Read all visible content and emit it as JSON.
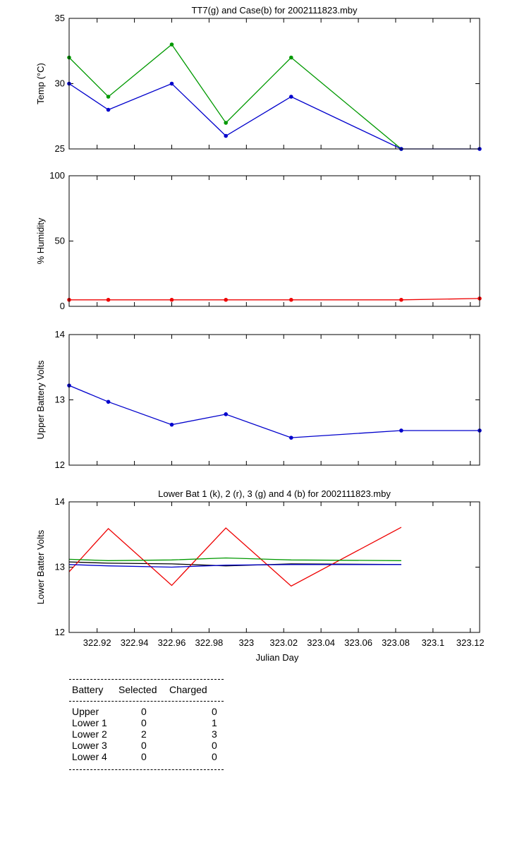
{
  "chart_data": [
    {
      "type": "line",
      "title": "TT7(g) and Case(b) for 2002111823.mby",
      "xlabel": "",
      "ylabel": "Temp  (°C)",
      "xlim": [
        322.905,
        323.125
      ],
      "ylim": [
        25,
        35
      ],
      "yticks": [
        25,
        30,
        35
      ],
      "grid": false,
      "series": [
        {
          "color": "#009900",
          "marker": "dot",
          "x": [
            322.905,
            322.926,
            322.96,
            322.989,
            323.024,
            323.083
          ],
          "values": [
            32,
            29,
            33,
            27,
            32,
            25
          ]
        },
        {
          "color": "#0000cc",
          "marker": "dot",
          "x": [
            322.905,
            322.926,
            322.96,
            322.989,
            323.024,
            323.083,
            323.125
          ],
          "values": [
            30,
            28,
            30,
            26,
            29,
            25,
            25
          ]
        }
      ]
    },
    {
      "type": "line",
      "title": "",
      "xlabel": "",
      "ylabel": "% Humidity",
      "xlim": [
        322.905,
        323.125
      ],
      "ylim": [
        0,
        100
      ],
      "yticks": [
        0,
        50,
        100
      ],
      "grid": false,
      "series": [
        {
          "color": "#ee0000",
          "marker": "dot",
          "x": [
            322.905,
            322.926,
            322.96,
            322.989,
            323.024,
            323.083,
            323.125
          ],
          "values": [
            5,
            5,
            5,
            5,
            5,
            5,
            6
          ]
        }
      ]
    },
    {
      "type": "line",
      "title": "",
      "xlabel": "",
      "ylabel": "Upper Battery Volts",
      "xlim": [
        322.905,
        323.125
      ],
      "ylim": [
        12,
        14
      ],
      "yticks": [
        12,
        13,
        14
      ],
      "grid": false,
      "series": [
        {
          "color": "#0000cc",
          "marker": "dot",
          "x": [
            322.905,
            322.926,
            322.96,
            322.989,
            323.024,
            323.083,
            323.125
          ],
          "values": [
            13.22,
            12.97,
            12.62,
            12.78,
            12.42,
            12.53,
            12.53
          ]
        }
      ]
    },
    {
      "type": "line",
      "title": "Lower Bat 1 (k), 2 (r), 3 (g) and 4 (b) for 2002111823.mby",
      "xlabel": "Julian Day",
      "ylabel": "Lower Batter Volts",
      "xlim": [
        322.905,
        323.125
      ],
      "ylim": [
        12,
        14
      ],
      "yticks": [
        12,
        13,
        14
      ],
      "xticks": [
        322.92,
        322.94,
        322.96,
        322.98,
        323,
        323.02,
        323.04,
        323.06,
        323.08,
        323.1,
        323.12
      ],
      "xtick_labels": [
        "322.92",
        "322.94",
        "322.96",
        "322.98",
        "323",
        "323.02",
        "323.04",
        "323.06",
        "323.08",
        "323.1",
        "323.12"
      ],
      "grid": false,
      "series": [
        {
          "color": "#000000",
          "marker": "none",
          "x": [
            322.905,
            322.926,
            322.96,
            322.989,
            323.024,
            323.083
          ],
          "values": [
            13.08,
            13.06,
            13.05,
            13.02,
            13.05,
            13.04
          ]
        },
        {
          "color": "#ee0000",
          "marker": "none",
          "x": [
            322.905,
            322.926,
            322.96,
            322.989,
            323.024,
            323.083
          ],
          "values": [
            12.93,
            13.59,
            12.72,
            13.6,
            12.71,
            13.61
          ]
        },
        {
          "color": "#009900",
          "marker": "none",
          "x": [
            322.905,
            322.926,
            322.96,
            322.989,
            323.024,
            323.083
          ],
          "values": [
            13.12,
            13.1,
            13.11,
            13.14,
            13.11,
            13.1
          ]
        },
        {
          "color": "#0000cc",
          "marker": "none",
          "x": [
            322.905,
            322.926,
            322.96,
            322.989,
            323.024,
            323.083
          ],
          "values": [
            13.04,
            13.02,
            13.0,
            13.03,
            13.04,
            13.04
          ]
        }
      ]
    }
  ],
  "summary_table": {
    "headers": [
      "Battery",
      "Selected",
      "Charged"
    ],
    "rows": [
      [
        "Upper",
        "0",
        "0"
      ],
      [
        "Lower 1",
        "0",
        "1"
      ],
      [
        "Lower 2",
        "2",
        "3"
      ],
      [
        "Lower 3",
        "0",
        "0"
      ],
      [
        "Lower 4",
        "0",
        "0"
      ]
    ]
  }
}
